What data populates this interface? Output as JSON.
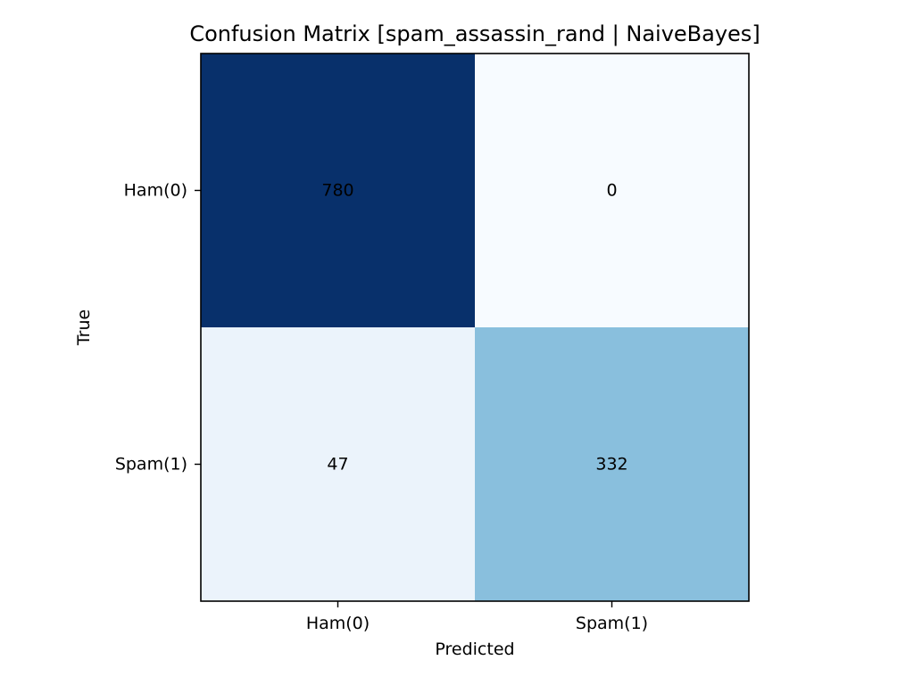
{
  "chart_data": {
    "type": "heatmap",
    "title": "Confusion Matrix [spam_assassin_rand | NaiveBayes]",
    "xlabel": "Predicted",
    "ylabel": "True",
    "x_categories": [
      "Ham(0)",
      "Spam(1)"
    ],
    "y_categories": [
      "Ham(0)",
      "Spam(1)"
    ],
    "values": [
      [
        780,
        0
      ],
      [
        47,
        332
      ]
    ],
    "colormap": "Blues",
    "vmin": 0,
    "vmax": 780,
    "colors": {
      "low": "#f7fbff",
      "high": "#08306b",
      "text": "#000000",
      "spine": "#000000"
    },
    "grid": false,
    "legend": "none"
  }
}
